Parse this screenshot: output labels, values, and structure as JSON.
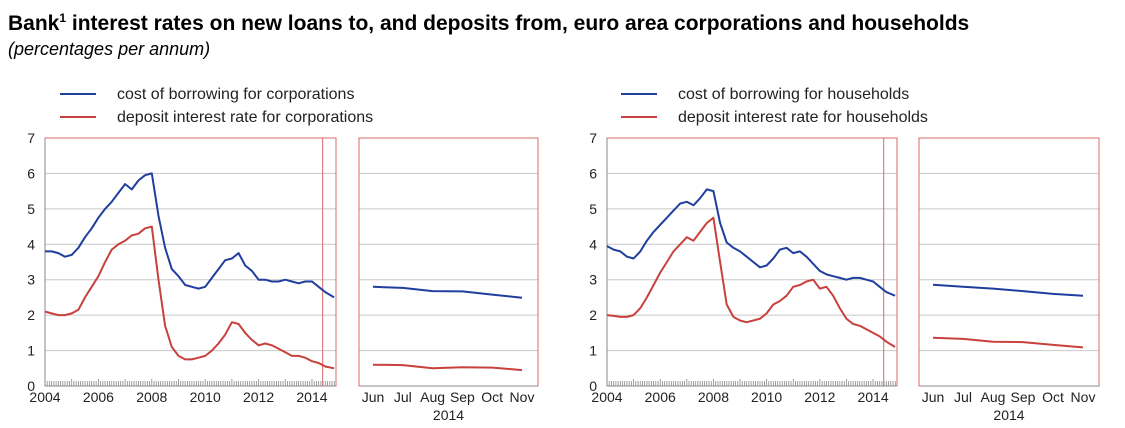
{
  "header": {
    "title_main": "Bank",
    "title_sup": "1",
    "title_rest": " interest rates on new loans to, and deposits from, euro area corporations and households",
    "subtitle": "(percentages per annum)"
  },
  "colors": {
    "borrowing": "#1f3e9e",
    "deposit": "#c8413d",
    "grid": "#c8c8c8",
    "frame": "#d86a66",
    "axis": "#888888"
  },
  "chart_data": [
    {
      "id": "corporations",
      "type": "line",
      "legend": [
        "cost of borrowing for corporations",
        "deposit interest rate for corporations"
      ],
      "legend_placement": "top",
      "ylim": [
        0,
        7
      ],
      "yticks": [
        "0",
        "1",
        "2",
        "3",
        "4",
        "5",
        "6",
        "7"
      ],
      "grid": true,
      "long_run": {
        "xlim": [
          2004.0,
          2014.9
        ],
        "xticks": [
          "2004",
          "2006",
          "2008",
          "2010",
          "2012",
          "2014"
        ],
        "series": [
          {
            "name": "cost of borrowing for corporations",
            "color": "borrowing",
            "x": [
              2004.0,
              2004.25,
              2004.5,
              2004.75,
              2005.0,
              2005.25,
              2005.5,
              2005.75,
              2006.0,
              2006.25,
              2006.5,
              2006.75,
              2007.0,
              2007.25,
              2007.5,
              2007.75,
              2008.0,
              2008.25,
              2008.5,
              2008.75,
              2009.0,
              2009.25,
              2009.5,
              2009.75,
              2010.0,
              2010.25,
              2010.5,
              2010.75,
              2011.0,
              2011.25,
              2011.5,
              2011.75,
              2012.0,
              2012.25,
              2012.5,
              2012.75,
              2013.0,
              2013.25,
              2013.5,
              2013.75,
              2014.0,
              2014.25,
              2014.5,
              2014.83
            ],
            "values": [
              3.8,
              3.8,
              3.75,
              3.65,
              3.7,
              3.9,
              4.2,
              4.45,
              4.75,
              5.0,
              5.2,
              5.45,
              5.7,
              5.55,
              5.8,
              5.95,
              6.0,
              4.8,
              3.9,
              3.3,
              3.1,
              2.85,
              2.8,
              2.75,
              2.8,
              3.05,
              3.3,
              3.55,
              3.6,
              3.75,
              3.4,
              3.25,
              3.0,
              3.0,
              2.95,
              2.95,
              3.0,
              2.95,
              2.9,
              2.95,
              2.95,
              2.8,
              2.65,
              2.5
            ]
          },
          {
            "name": "deposit interest rate for corporations",
            "color": "deposit",
            "x": [
              2004.0,
              2004.25,
              2004.5,
              2004.75,
              2005.0,
              2005.25,
              2005.5,
              2005.75,
              2006.0,
              2006.25,
              2006.5,
              2006.75,
              2007.0,
              2007.25,
              2007.5,
              2007.75,
              2008.0,
              2008.25,
              2008.5,
              2008.75,
              2009.0,
              2009.25,
              2009.5,
              2009.75,
              2010.0,
              2010.25,
              2010.5,
              2010.75,
              2011.0,
              2011.25,
              2011.5,
              2011.75,
              2012.0,
              2012.25,
              2012.5,
              2012.75,
              2013.0,
              2013.25,
              2013.5,
              2013.75,
              2014.0,
              2014.25,
              2014.5,
              2014.83
            ],
            "values": [
              2.1,
              2.05,
              2.0,
              2.0,
              2.05,
              2.15,
              2.5,
              2.8,
              3.1,
              3.5,
              3.85,
              4.0,
              4.1,
              4.25,
              4.3,
              4.45,
              4.5,
              3.0,
              1.7,
              1.1,
              0.85,
              0.75,
              0.75,
              0.8,
              0.85,
              1.0,
              1.2,
              1.45,
              1.8,
              1.75,
              1.5,
              1.3,
              1.15,
              1.2,
              1.15,
              1.05,
              0.95,
              0.85,
              0.85,
              0.8,
              0.7,
              0.65,
              0.55,
              0.5
            ]
          }
        ]
      },
      "zoom": {
        "xticks": [
          "Jun",
          "Jul",
          "Aug",
          "Sep",
          "Oct",
          "Nov"
        ],
        "xlabel": "2014",
        "series": [
          {
            "name": "cost of borrowing for corporations",
            "color": "borrowing",
            "values": [
              2.8,
              2.77,
              2.68,
              2.67,
              2.58,
              2.49
            ]
          },
          {
            "name": "deposit interest rate for corporations",
            "color": "deposit",
            "values": [
              0.6,
              0.59,
              0.5,
              0.53,
              0.52,
              0.45
            ]
          }
        ]
      }
    },
    {
      "id": "households",
      "type": "line",
      "legend": [
        "cost of borrowing for households",
        "deposit interest rate for households"
      ],
      "legend_placement": "top",
      "ylim": [
        0,
        7
      ],
      "yticks": [
        "0",
        "1",
        "2",
        "3",
        "4",
        "5",
        "6",
        "7"
      ],
      "grid": true,
      "long_run": {
        "xlim": [
          2004.0,
          2014.9
        ],
        "xticks": [
          "2004",
          "2006",
          "2008",
          "2010",
          "2012",
          "2014"
        ],
        "series": [
          {
            "name": "cost of borrowing for households",
            "color": "borrowing",
            "x": [
              2004.0,
              2004.25,
              2004.5,
              2004.75,
              2005.0,
              2005.25,
              2005.5,
              2005.75,
              2006.0,
              2006.25,
              2006.5,
              2006.75,
              2007.0,
              2007.25,
              2007.5,
              2007.75,
              2008.0,
              2008.25,
              2008.5,
              2008.75,
              2009.0,
              2009.25,
              2009.5,
              2009.75,
              2010.0,
              2010.25,
              2010.5,
              2010.75,
              2011.0,
              2011.25,
              2011.5,
              2011.75,
              2012.0,
              2012.25,
              2012.5,
              2012.75,
              2013.0,
              2013.25,
              2013.5,
              2013.75,
              2014.0,
              2014.25,
              2014.5,
              2014.83
            ],
            "values": [
              3.95,
              3.85,
              3.8,
              3.65,
              3.6,
              3.8,
              4.1,
              4.35,
              4.55,
              4.75,
              4.95,
              5.15,
              5.2,
              5.1,
              5.3,
              5.55,
              5.5,
              4.6,
              4.05,
              3.9,
              3.8,
              3.65,
              3.5,
              3.35,
              3.4,
              3.6,
              3.85,
              3.9,
              3.75,
              3.8,
              3.65,
              3.45,
              3.25,
              3.15,
              3.1,
              3.05,
              3.0,
              3.05,
              3.05,
              3.0,
              2.95,
              2.8,
              2.65,
              2.55
            ]
          },
          {
            "name": "deposit interest rate for households",
            "color": "deposit",
            "x": [
              2004.0,
              2004.25,
              2004.5,
              2004.75,
              2005.0,
              2005.25,
              2005.5,
              2005.75,
              2006.0,
              2006.25,
              2006.5,
              2006.75,
              2007.0,
              2007.25,
              2007.5,
              2007.75,
              2008.0,
              2008.25,
              2008.5,
              2008.75,
              2009.0,
              2009.25,
              2009.5,
              2009.75,
              2010.0,
              2010.25,
              2010.5,
              2010.75,
              2011.0,
              2011.25,
              2011.5,
              2011.75,
              2012.0,
              2012.25,
              2012.5,
              2012.75,
              2013.0,
              2013.25,
              2013.5,
              2013.75,
              2014.0,
              2014.25,
              2014.5,
              2014.83
            ],
            "values": [
              2.0,
              1.98,
              1.95,
              1.95,
              2.0,
              2.2,
              2.5,
              2.85,
              3.2,
              3.5,
              3.8,
              4.0,
              4.2,
              4.1,
              4.35,
              4.6,
              4.75,
              3.5,
              2.3,
              1.95,
              1.85,
              1.8,
              1.85,
              1.9,
              2.05,
              2.3,
              2.4,
              2.55,
              2.8,
              2.85,
              2.95,
              3.0,
              2.75,
              2.8,
              2.55,
              2.2,
              1.9,
              1.75,
              1.7,
              1.6,
              1.5,
              1.4,
              1.25,
              1.1
            ]
          },
          {
            "placeholder": true
          }
        ]
      },
      "zoom": {
        "xticks": [
          "Jun",
          "Jul",
          "Aug",
          "Sep",
          "Oct",
          "Nov"
        ],
        "xlabel": "2014",
        "series": [
          {
            "name": "cost of borrowing for households",
            "color": "borrowing",
            "values": [
              2.86,
              2.8,
              2.75,
              2.68,
              2.6,
              2.55
            ]
          },
          {
            "name": "deposit interest rate for households",
            "color": "deposit",
            "values": [
              1.36,
              1.33,
              1.25,
              1.24,
              1.16,
              1.09
            ]
          }
        ]
      }
    }
  ]
}
